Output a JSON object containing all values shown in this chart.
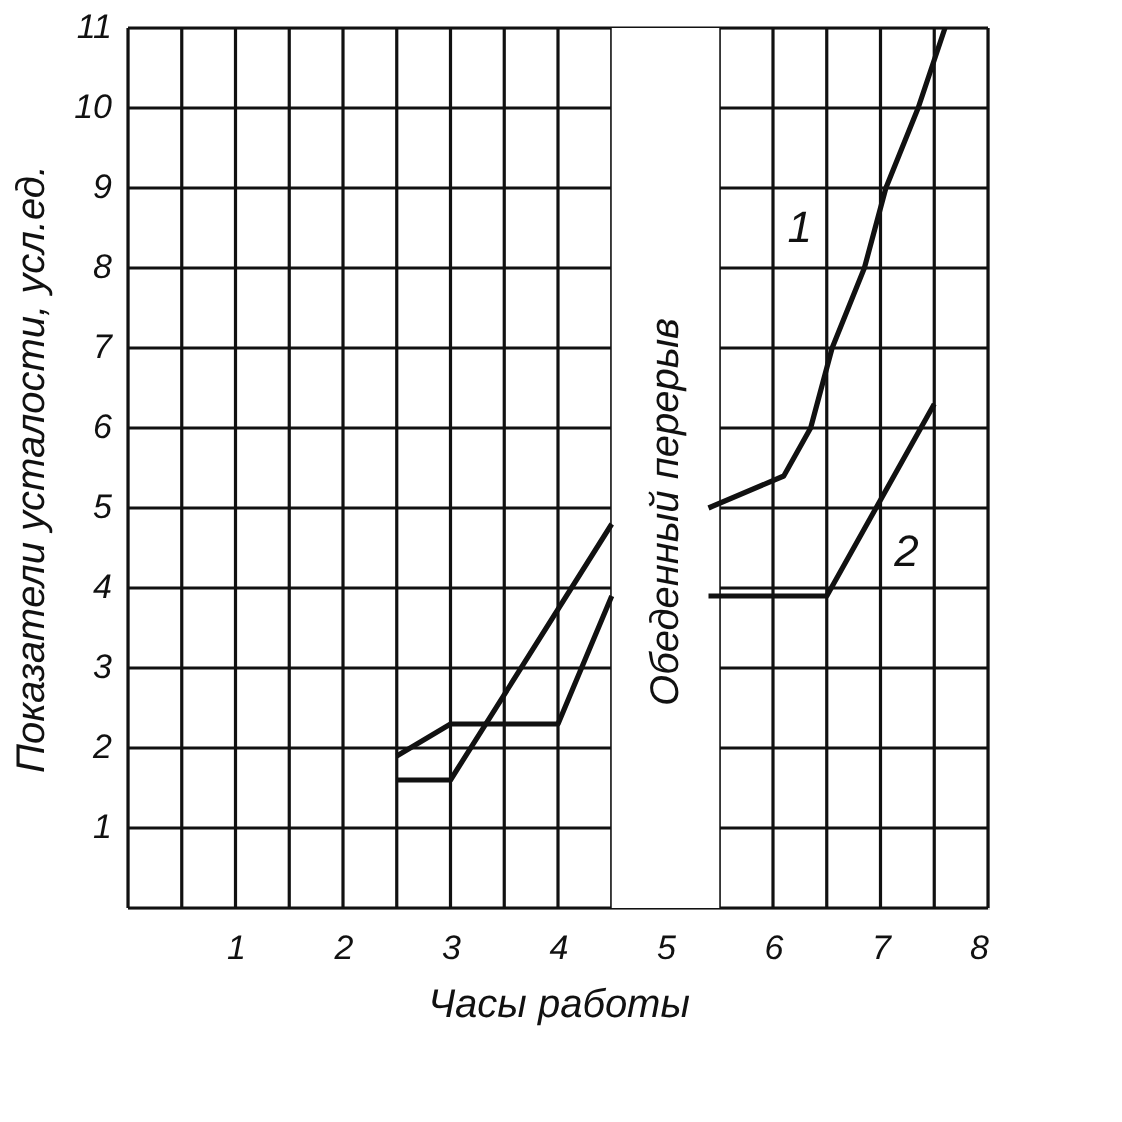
{
  "chart_data": {
    "type": "line",
    "xlabel": "Часы работы",
    "ylabel": "Показатели усталости, усл.ед.",
    "xlim": [
      0,
      8
    ],
    "ylim": [
      0,
      11
    ],
    "xticks": [
      {
        "value": 0,
        "label": null
      },
      {
        "value": 0.5,
        "label": null
      },
      1,
      {
        "value": 1.5,
        "label": null
      },
      2,
      {
        "value": 2.5,
        "label": null
      },
      3,
      {
        "value": 3.5,
        "label": null
      },
      4,
      {
        "value": 4.5,
        "label": null
      },
      5,
      {
        "value": 5.5,
        "label": null
      },
      6,
      {
        "value": 6.5,
        "label": null
      },
      7,
      {
        "value": 7.5,
        "label": null
      },
      8
    ],
    "yticks": [
      {
        "value": 0,
        "label": null
      },
      1,
      2,
      3,
      4,
      5,
      6,
      7,
      8,
      9,
      10,
      11
    ],
    "grid": true,
    "marker": "none",
    "line_style": "solid",
    "series": [
      {
        "color": "#111111",
        "x": [
          2.5,
          3,
          4.5,
          5.0,
          5.4,
          6.1,
          6.35,
          6.55,
          6.85,
          7.05,
          7.35,
          7.6
        ],
        "values": [
          1.6,
          1.6,
          4.8,
          null,
          5.0,
          5.4,
          6.0,
          7.0,
          8.0,
          9.0,
          10.0,
          11.0
        ]
      },
      {
        "color": "#111111",
        "x": [
          2.5,
          3,
          4,
          4.5,
          5.0,
          5.4,
          6.5,
          7.5
        ],
        "values": [
          1.9,
          2.3,
          2.3,
          3.9,
          null,
          3.9,
          3.9,
          6.3
        ]
      }
    ],
    "bands": [
      {
        "axis": "x",
        "from": 4.5,
        "to": 5.5,
        "label": "Обеденный перерыв",
        "color": "#ffffff"
      }
    ],
    "annotations": [
      {
        "text": "1",
        "x": 6.9,
        "y": 8.2
      },
      {
        "text": "2",
        "x": 7.0,
        "y": 5.1
      }
    ]
  }
}
